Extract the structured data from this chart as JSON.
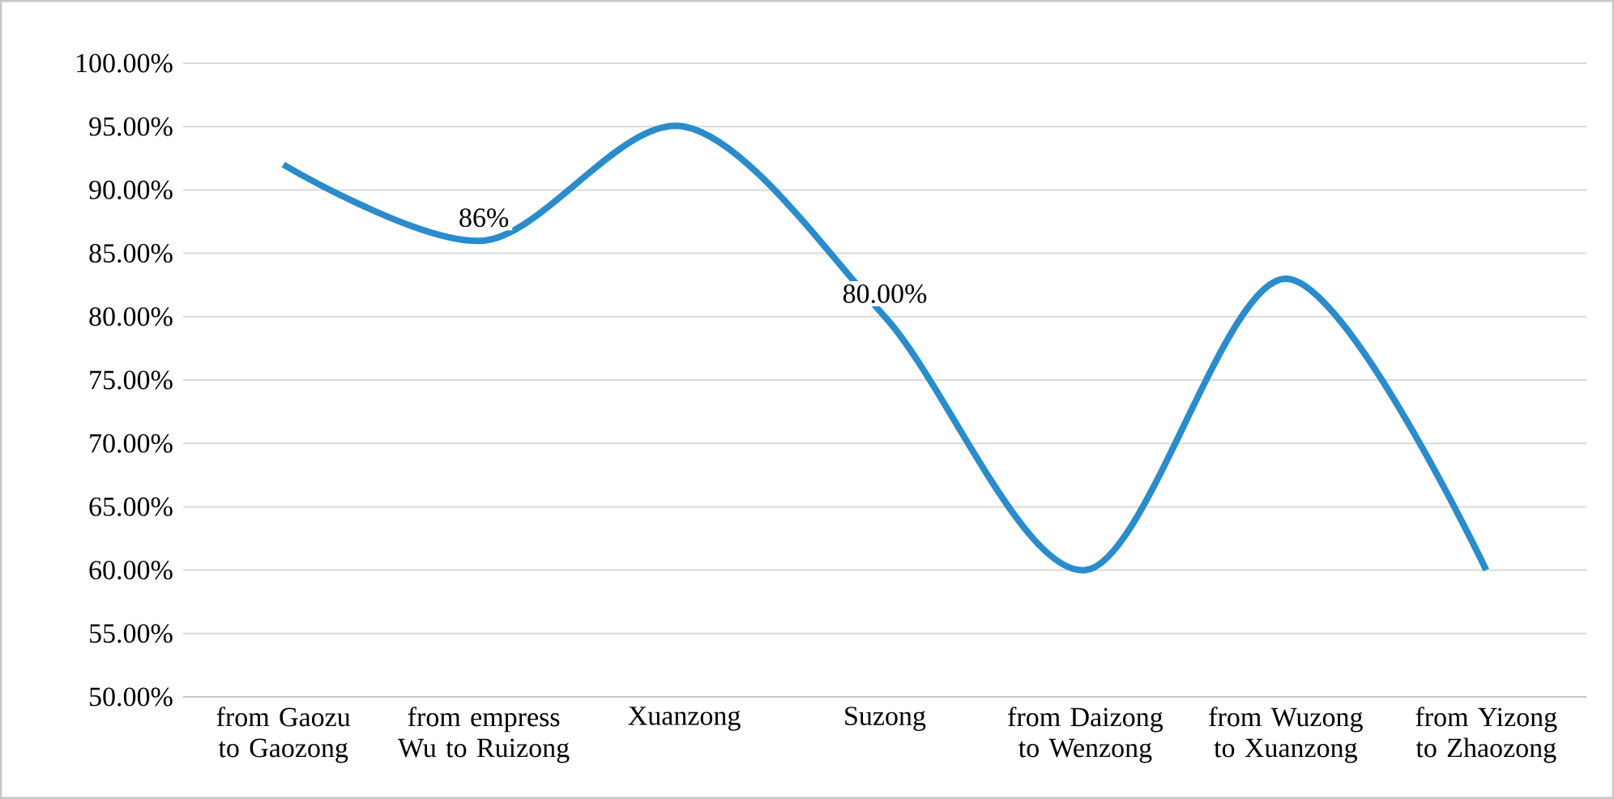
{
  "chart_data": {
    "type": "line",
    "categories": [
      "from Gaozu to Gaozong",
      "from empress Wu to Ruizong",
      "Xuanzong",
      "Suzong",
      "from Daizong to Wenzong",
      "from Wuzong to Xuanzong",
      "from Yizong to Zhaozong"
    ],
    "values": [
      92,
      86,
      95,
      80,
      60,
      83,
      60
    ],
    "value_labels": [
      null,
      "86%",
      null,
      "80.00%",
      null,
      null,
      null
    ],
    "color": "#2a8ccb",
    "line_style": "solid",
    "marker": "none",
    "grid": "y",
    "ylim": [
      50,
      100
    ],
    "yticks": [
      {
        "value": 50,
        "label": "50.00%"
      },
      {
        "value": 55,
        "label": "55.00%"
      },
      {
        "value": 60,
        "label": "60.00%"
      },
      {
        "value": 65,
        "label": "65.00%"
      },
      {
        "value": 70,
        "label": "70.00%"
      },
      {
        "value": 75,
        "label": "75.00%"
      },
      {
        "value": 80,
        "label": "80.00%"
      },
      {
        "value": 85,
        "label": "85.00%"
      },
      {
        "value": 90,
        "label": "90.00%"
      },
      {
        "value": 95,
        "label": "95.00%"
      },
      {
        "value": 100,
        "label": "100.00%"
      }
    ]
  }
}
